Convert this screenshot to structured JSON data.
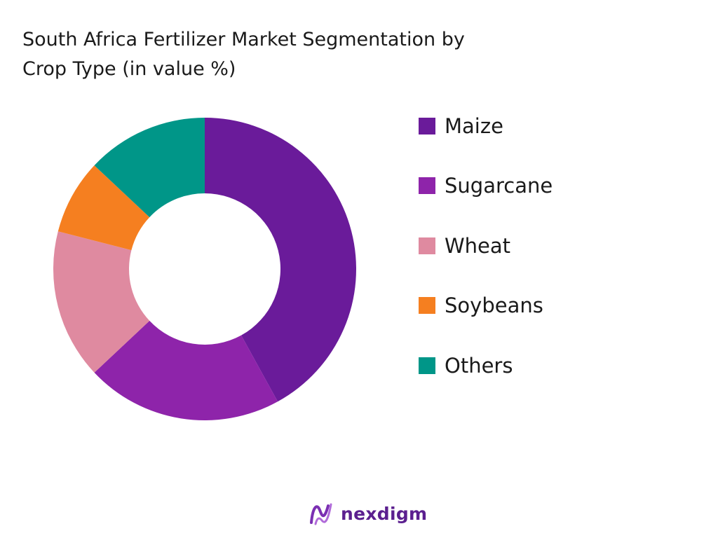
{
  "title": "South Africa Fertilizer Market Segmentation by\nCrop Type (in value %)",
  "brand": {
    "name": "nexdigm",
    "logo_icon": "nexdigm-logo-icon",
    "color": "#5b1f8f"
  },
  "chart_data": {
    "type": "pie",
    "variant": "donut",
    "title": "South Africa Fertilizer Market Segmentation by Crop Type (in value %)",
    "legend_position": "right",
    "series": [
      {
        "name": "Maize",
        "value": 42,
        "color": "#6a1b9a"
      },
      {
        "name": "Sugarcane",
        "value": 21,
        "color": "#8e24aa"
      },
      {
        "name": "Wheat",
        "value": 16,
        "color": "#df8aa0"
      },
      {
        "name": "Soybeans",
        "value": 8,
        "color": "#f57f20"
      },
      {
        "name": "Others",
        "value": 13,
        "color": "#009688"
      }
    ]
  }
}
